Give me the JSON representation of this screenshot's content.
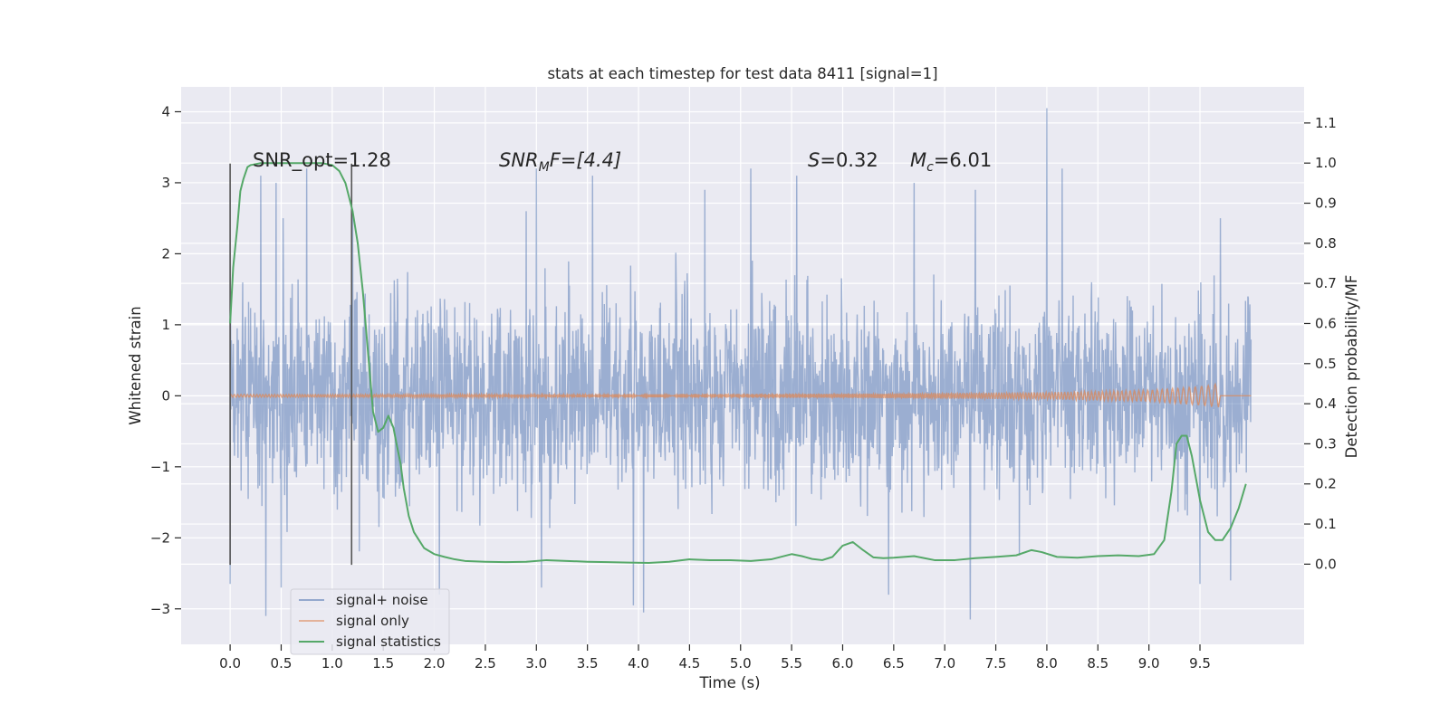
{
  "chart_data": {
    "type": "line",
    "title": "stats at each timestep for test data 8411 [signal=1]",
    "xlabel": "Time (s)",
    "ylabel": "Whitened strain",
    "y2label": "Detection probability/MF",
    "xlim": [
      -0.48,
      10.52
    ],
    "ylim": [
      -3.5,
      4.35
    ],
    "y2lim": [
      -0.2,
      1.19
    ],
    "xticks": [
      "0.0",
      "0.5",
      "1.0",
      "1.5",
      "2.0",
      "2.5",
      "3.0",
      "3.5",
      "4.0",
      "4.5",
      "5.0",
      "5.5",
      "6.0",
      "6.5",
      "7.0",
      "7.5",
      "8.0",
      "8.5",
      "9.0",
      "9.5"
    ],
    "yticks": [
      "4",
      "3",
      "2",
      "1",
      "0",
      "−1",
      "−2",
      "−3"
    ],
    "y2ticks": [
      "1.1",
      "1.0",
      "0.9",
      "0.8",
      "0.7",
      "0.6",
      "0.5",
      "0.4",
      "0.3",
      "0.2",
      "0.1",
      "0.0"
    ],
    "grid": true,
    "legend_position": "lower-left",
    "colors": {
      "background": "#eaeaf2",
      "grid": "#ffffff",
      "noise": "#4c72b0",
      "signal": "#dd8452",
      "stats": "#55a868",
      "markers": "#555555"
    },
    "annotations": {
      "snr_opt": "SNR_opt=1.28",
      "snr_mf_main": "SNR",
      "snr_mf_sub": "M",
      "snr_mf_rest": "F=[4.4]",
      "s_var": "S",
      "s_value": "=0.32",
      "mc_var": "M",
      "mc_sub": "c",
      "mc_value": "=6.01"
    },
    "markers_x": [
      0.0,
      1.19
    ],
    "series": [
      {
        "name": "signal+ noise",
        "axis": "left",
        "description_range": [
          -3.1,
          4.05
        ],
        "peaks": [
          [
            0.3,
            3.1
          ],
          [
            0.45,
            3.0
          ],
          [
            0.52,
            2.5
          ],
          [
            0.75,
            3.2
          ],
          [
            1.2,
            2.6
          ],
          [
            2.9,
            2.6
          ],
          [
            3.0,
            3.2
          ],
          [
            3.55,
            3.1
          ],
          [
            4.65,
            2.9
          ],
          [
            5.1,
            3.2
          ],
          [
            5.55,
            3.1
          ],
          [
            6.7,
            3.0
          ],
          [
            7.3,
            2.9
          ],
          [
            8.0,
            4.05
          ],
          [
            8.15,
            3.2
          ],
          [
            9.5,
            2.85
          ],
          [
            9.7,
            2.5
          ]
        ],
        "troughs": [
          [
            0.0,
            -2.65
          ],
          [
            0.35,
            -3.1
          ],
          [
            0.5,
            -2.7
          ],
          [
            2.05,
            -2.8
          ],
          [
            3.05,
            -2.7
          ],
          [
            3.95,
            -2.95
          ],
          [
            4.05,
            -3.05
          ],
          [
            6.45,
            -2.8
          ],
          [
            7.25,
            -3.15
          ],
          [
            9.5,
            -2.65
          ],
          [
            9.8,
            -2.6
          ]
        ]
      },
      {
        "name": "signal only",
        "axis": "left",
        "envelope": [
          [
            0.0,
            0.02
          ],
          [
            3.0,
            0.02
          ],
          [
            6.0,
            0.03
          ],
          [
            8.0,
            0.05
          ],
          [
            9.0,
            0.08
          ],
          [
            9.4,
            0.12
          ],
          [
            9.62,
            0.15
          ],
          [
            9.68,
            0.18
          ],
          [
            9.7,
            0.0
          ],
          [
            10.0,
            0.0
          ]
        ]
      },
      {
        "name": "signal statistics",
        "axis": "right",
        "x": [
          0.0,
          0.03,
          0.07,
          0.1,
          0.13,
          0.17,
          0.2,
          0.3,
          0.4,
          0.5,
          0.6,
          0.7,
          0.8,
          0.9,
          1.0,
          1.07,
          1.13,
          1.2,
          1.25,
          1.3,
          1.35,
          1.4,
          1.45,
          1.5,
          1.55,
          1.6,
          1.63,
          1.67,
          1.7,
          1.75,
          1.8,
          1.85,
          1.9,
          2.0,
          2.1,
          2.2,
          2.3,
          2.5,
          2.7,
          2.9,
          3.1,
          3.3,
          3.5,
          3.7,
          3.9,
          4.1,
          4.3,
          4.5,
          4.7,
          4.9,
          5.1,
          5.3,
          5.5,
          5.6,
          5.7,
          5.8,
          5.9,
          6.0,
          6.1,
          6.2,
          6.3,
          6.4,
          6.5,
          6.7,
          6.9,
          7.1,
          7.3,
          7.5,
          7.7,
          7.85,
          7.95,
          8.1,
          8.3,
          8.5,
          8.7,
          8.9,
          9.05,
          9.15,
          9.22,
          9.27,
          9.32,
          9.37,
          9.42,
          9.5,
          9.58,
          9.65,
          9.72,
          9.8,
          9.88,
          9.95
        ],
        "values": [
          0.6,
          0.74,
          0.84,
          0.93,
          0.96,
          0.99,
          0.995,
          1.0,
          1.0,
          1.0,
          1.0,
          1.0,
          1.0,
          1.0,
          0.995,
          0.98,
          0.95,
          0.88,
          0.8,
          0.68,
          0.53,
          0.38,
          0.33,
          0.34,
          0.37,
          0.34,
          0.3,
          0.25,
          0.19,
          0.12,
          0.08,
          0.06,
          0.04,
          0.025,
          0.018,
          0.012,
          0.008,
          0.006,
          0.005,
          0.006,
          0.01,
          0.008,
          0.006,
          0.005,
          0.004,
          0.003,
          0.006,
          0.012,
          0.01,
          0.01,
          0.008,
          0.012,
          0.025,
          0.02,
          0.013,
          0.01,
          0.018,
          0.046,
          0.055,
          0.035,
          0.017,
          0.015,
          0.016,
          0.02,
          0.01,
          0.01,
          0.015,
          0.018,
          0.022,
          0.035,
          0.03,
          0.018,
          0.016,
          0.02,
          0.022,
          0.02,
          0.025,
          0.06,
          0.18,
          0.3,
          0.32,
          0.32,
          0.27,
          0.16,
          0.08,
          0.06,
          0.06,
          0.09,
          0.14,
          0.2
        ]
      }
    ]
  }
}
